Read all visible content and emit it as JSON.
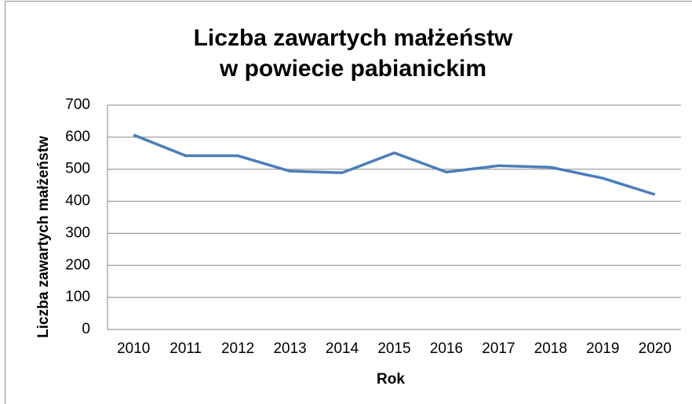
{
  "chart_data": {
    "type": "line",
    "title": [
      "Liczba zawartych małżeństw",
      "w powiecie pabianickim"
    ],
    "x_label": "Rok",
    "y_label": "Liczba zawartych małżeństw",
    "categories": [
      "2010",
      "2011",
      "2012",
      "2013",
      "2014",
      "2015",
      "2016",
      "2017",
      "2018",
      "2019",
      "2020"
    ],
    "series": [
      {
        "name": "Liczba zawartych małżeństw",
        "color": "#4a7ebb",
        "values": [
          607,
          542,
          542,
          494,
          489,
          551,
          491,
          511,
          506,
          472,
          421
        ]
      }
    ],
    "ylim": [
      0,
      700
    ],
    "yticks": [
      0,
      100,
      200,
      300,
      400,
      500,
      600,
      700
    ],
    "grid": true
  }
}
